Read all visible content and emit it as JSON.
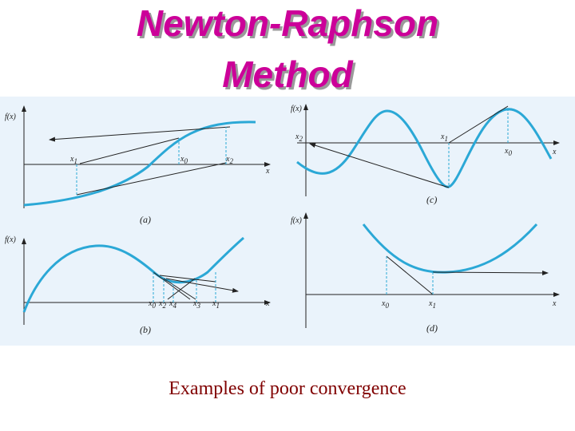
{
  "title": {
    "line1": "Newton-Raphson",
    "line2": "Method"
  },
  "caption": "Examples of poor convergence",
  "colors": {
    "title": "#cc0099",
    "curve": "#2ba8d6",
    "caption": "#800000",
    "figure_bg": "#eaf3fb"
  },
  "panels": {
    "a": {
      "label": "(a)",
      "ylabel": "f(x)",
      "xlabel": "x",
      "ticks": [
        {
          "base": "x",
          "sub": "1"
        },
        {
          "base": "x",
          "sub": "0"
        },
        {
          "base": "x",
          "sub": "2"
        }
      ]
    },
    "b": {
      "label": "(b)",
      "ylabel": "f(x)",
      "xlabel": "x",
      "ticks": [
        {
          "base": "x",
          "sub": "0"
        },
        {
          "base": "x",
          "sub": "2"
        },
        {
          "base": "x",
          "sub": "4"
        },
        {
          "base": "x",
          "sub": "3"
        },
        {
          "base": "x",
          "sub": "1"
        }
      ]
    },
    "c": {
      "label": "(c)",
      "ylabel": "f(x)",
      "xlabel": "x",
      "ticks": [
        {
          "base": "x",
          "sub": "2"
        },
        {
          "base": "x",
          "sub": "1"
        },
        {
          "base": "x",
          "sub": "0"
        }
      ]
    },
    "d": {
      "label": "(d)",
      "ylabel": "f(x)",
      "xlabel": "x",
      "ticks": [
        {
          "base": "x",
          "sub": "0"
        },
        {
          "base": "x",
          "sub": "1"
        }
      ]
    }
  }
}
